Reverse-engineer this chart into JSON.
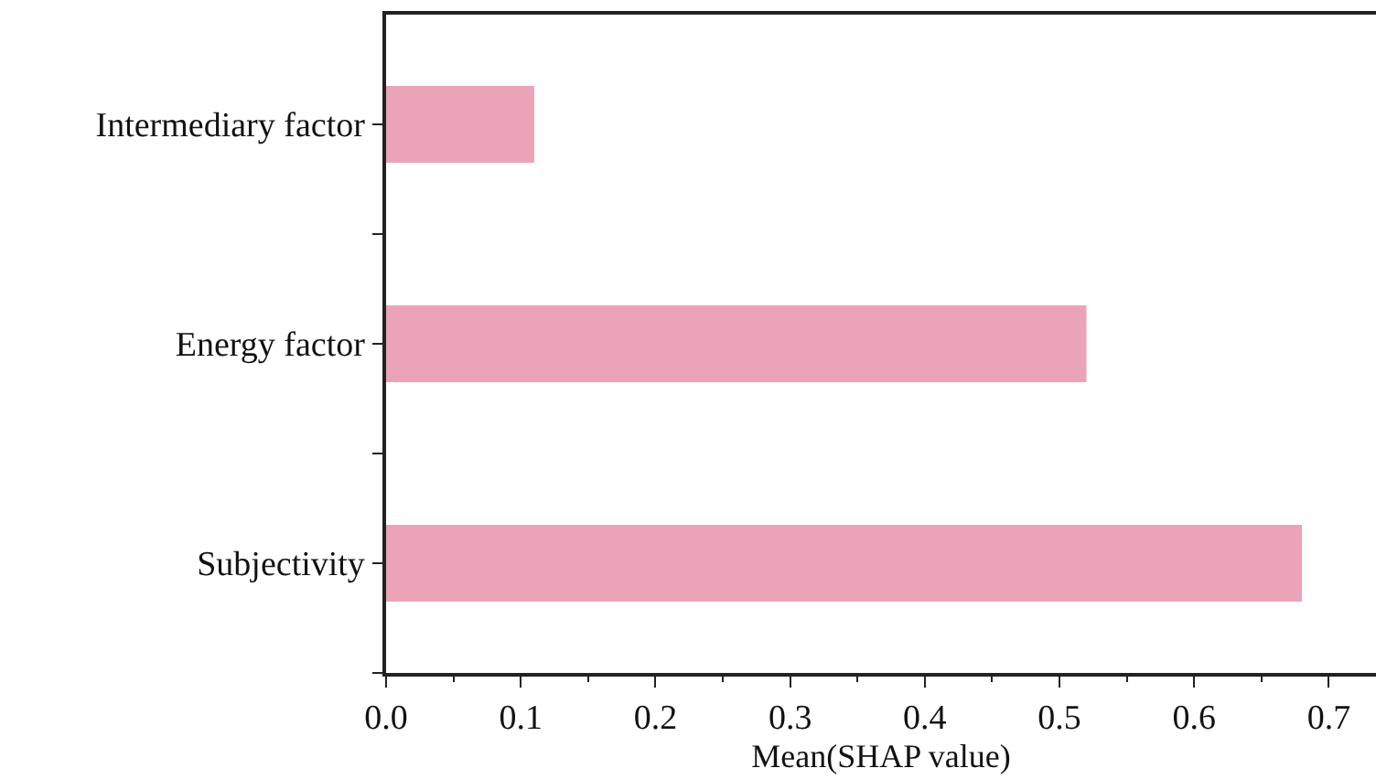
{
  "chart_data": {
    "type": "bar",
    "orientation": "horizontal",
    "categories": [
      "Intermediary factor",
      "Energy factor",
      "Subjectivity"
    ],
    "values": [
      0.11,
      0.52,
      0.68
    ],
    "color": "#eba3b8",
    "xlabel": "Mean(SHAP value)",
    "xlim": [
      0,
      0.735
    ],
    "xticks": [
      {
        "value": 0,
        "label": "0.0"
      },
      0.1,
      0.2,
      0.3,
      0.4,
      0.5,
      0.6,
      0.7
    ],
    "grid": false,
    "legend": false
  }
}
